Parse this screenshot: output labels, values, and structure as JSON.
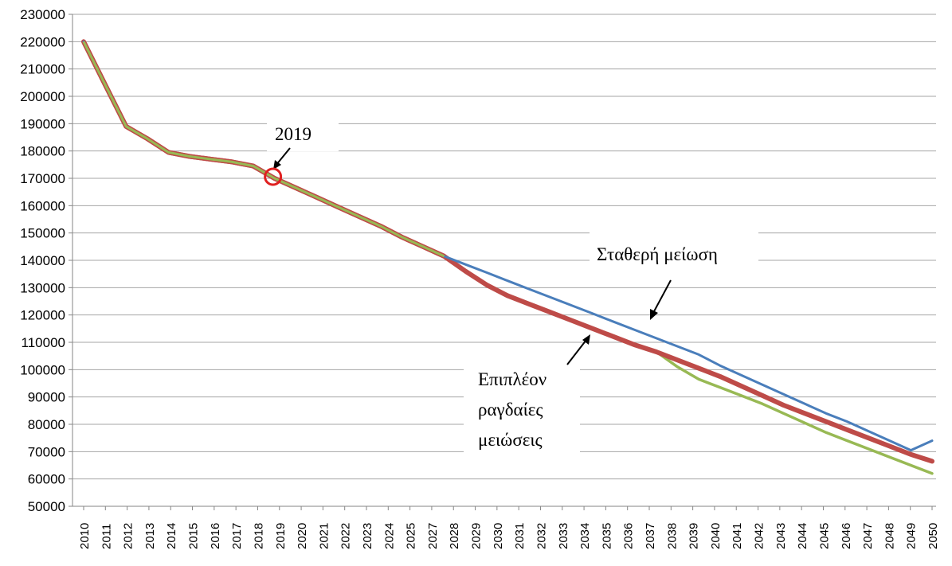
{
  "chart_data": {
    "type": "line",
    "title": "",
    "xlabel": "",
    "ylabel": "",
    "ylim": [
      50000,
      230000
    ],
    "ytick_step": 10000,
    "grid": "horizontal",
    "legend": "none",
    "x": [
      "2010",
      "2011",
      "2012",
      "2013",
      "2014",
      "2015",
      "2016",
      "2017",
      "2018",
      "2019",
      "2020",
      "2021",
      "2022",
      "2023",
      "2024",
      "2025",
      "2026",
      "2027",
      "2028",
      "2029",
      "2030",
      "2031",
      "2032",
      "2033",
      "2034",
      "2035",
      "2036",
      "2037",
      "2038",
      "2039",
      "2040",
      "2041",
      "2042",
      "2043",
      "2044",
      "2045",
      "2046",
      "2047",
      "2048",
      "2049",
      "2050"
    ],
    "xtick_labels": [
      "2010",
      "2011",
      "2012",
      "2013",
      "2014",
      "2015",
      "2016",
      "2017",
      "2018",
      "2019",
      "2020",
      "2021",
      "2022",
      "2023",
      "2024",
      "2025",
      "2027",
      "2028",
      "2029",
      "2030",
      "2031",
      "2032",
      "2033",
      "2034",
      "2035",
      "2036",
      "2037",
      "2038",
      "2039",
      "2040",
      "2041",
      "2042",
      "2043",
      "2044",
      "2045",
      "2046",
      "2047",
      "2048",
      "2049",
      "2050"
    ],
    "series": [
      {
        "color": "#4a7ebb",
        "values": [
          220000,
          204500,
          189000,
          184500,
          179500,
          178000,
          177000,
          176000,
          174500,
          170000,
          166500,
          163000,
          159500,
          156000,
          152500,
          148500,
          145000,
          141500,
          138500,
          135500,
          132500,
          129500,
          126500,
          123500,
          120500,
          117500,
          114500,
          111500,
          108500,
          105500,
          101500,
          98000,
          94500,
          91000,
          87500,
          84000,
          81000,
          77500,
          74000,
          70500,
          74000
        ]
      },
      {
        "color": "#be4b48",
        "values": [
          220000,
          204500,
          189000,
          184500,
          179500,
          178000,
          177000,
          176000,
          174500,
          170000,
          166500,
          163000,
          159500,
          156000,
          152500,
          148500,
          145000,
          141500,
          136000,
          131000,
          127000,
          124000,
          121000,
          118000,
          115000,
          112000,
          109000,
          106500,
          103500,
          100500,
          97500,
          94000,
          90500,
          87000,
          84000,
          81000,
          78000,
          75000,
          72000,
          69000,
          66500
        ]
      },
      {
        "color": "#98b954",
        "values": [
          220000,
          204500,
          189000,
          184500,
          179500,
          178000,
          177000,
          176000,
          174500,
          170000,
          166500,
          163000,
          159500,
          156000,
          152500,
          148500,
          145000,
          141500,
          136000,
          131000,
          127000,
          124000,
          121000,
          118000,
          115000,
          112000,
          109000,
          106500,
          101000,
          96500,
          93500,
          90500,
          87500,
          84000,
          80500,
          77000,
          74000,
          71000,
          68000,
          65000,
          62000
        ]
      }
    ],
    "annotations": [
      {
        "text": "2019",
        "marker": "circle",
        "marker_color": "#e02020"
      },
      {
        "text": "Σταθερή μείωση"
      },
      {
        "lines": [
          "Επιπλέον",
          "ραγδαίες",
          "μειώσεις"
        ]
      }
    ]
  }
}
